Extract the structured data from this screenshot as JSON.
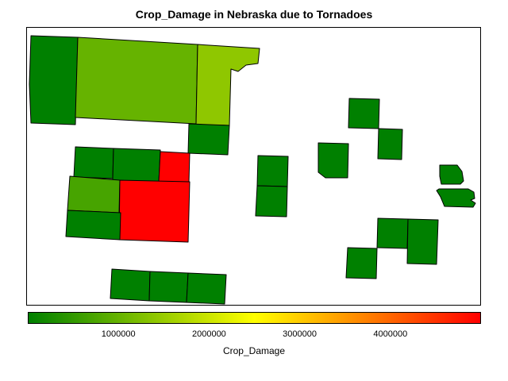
{
  "title": "Crop_Damage in Nebraska due to Tornadoes",
  "legend": {
    "title": "Crop_Damage",
    "min": 0,
    "max": 5000000,
    "ticks": [
      "1000000",
      "2000000",
      "3000000",
      "4000000"
    ],
    "gradient": [
      "#008000",
      "#ffff00",
      "#ff0000"
    ]
  },
  "chart_data": {
    "type": "map",
    "region": "Nebraska",
    "variable": "Crop_Damage",
    "counties": [
      {
        "id": "c01",
        "value": 0
      },
      {
        "id": "c02",
        "value": 1000000
      },
      {
        "id": "c03",
        "value": 1400000
      },
      {
        "id": "c04",
        "value": 0
      },
      {
        "id": "c05",
        "value": 0
      },
      {
        "id": "c06",
        "value": 0
      },
      {
        "id": "c07",
        "value": 5000000
      },
      {
        "id": "c08",
        "value": 700000
      },
      {
        "id": "c09",
        "value": 5000000
      },
      {
        "id": "c10",
        "value": 0
      },
      {
        "id": "c11",
        "value": 0
      },
      {
        "id": "c12",
        "value": 0
      },
      {
        "id": "c13",
        "value": 0
      },
      {
        "id": "c14",
        "value": 0
      },
      {
        "id": "c15",
        "value": 0
      },
      {
        "id": "c16",
        "value": 0
      },
      {
        "id": "c17",
        "value": 0
      },
      {
        "id": "c18",
        "value": 0
      },
      {
        "id": "c19",
        "value": 0
      },
      {
        "id": "c20",
        "value": 0
      },
      {
        "id": "c21",
        "value": 0
      },
      {
        "id": "c22",
        "value": 0
      },
      {
        "id": "c23",
        "value": 0
      },
      {
        "id": "c24",
        "value": 0
      },
      {
        "id": "c25",
        "value": 0
      },
      {
        "id": "c26",
        "value": 0
      },
      {
        "id": "c27",
        "value": 0
      }
    ]
  }
}
